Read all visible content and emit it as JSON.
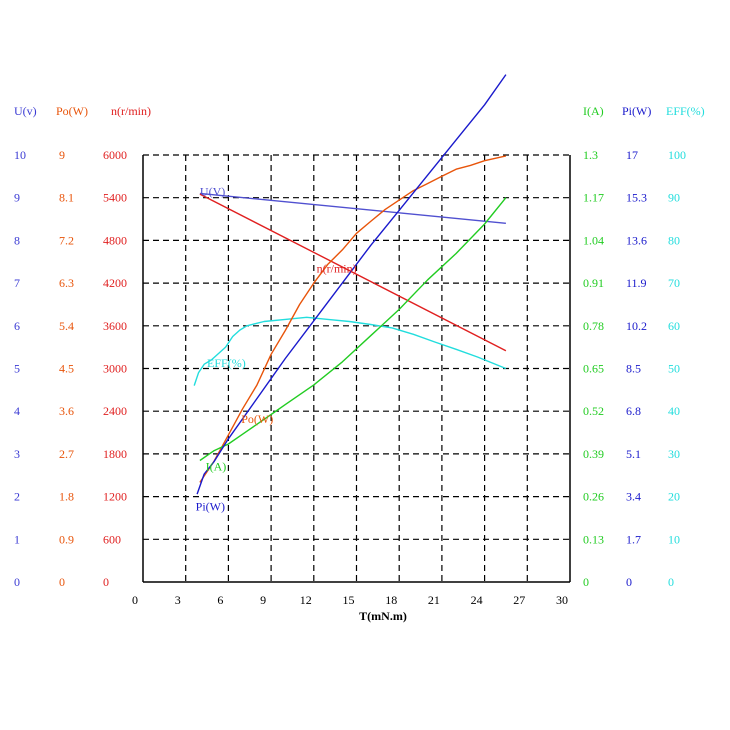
{
  "chart_data": {
    "type": "line",
    "xlabel": "T(mN.m)",
    "x_ticks": [
      "0",
      "3",
      "6",
      "9",
      "12",
      "15",
      "18",
      "21",
      "24",
      "27",
      "30"
    ],
    "xlim": [
      0,
      30
    ],
    "grid": true,
    "axes": [
      {
        "key": "U",
        "title": "U(v)",
        "side": "left",
        "color": "#3b3bd4",
        "ticks": [
          "0",
          "1",
          "2",
          "3",
          "4",
          "5",
          "6",
          "7",
          "8",
          "9",
          "10"
        ],
        "ylim": [
          0,
          10
        ]
      },
      {
        "key": "Po",
        "title": "Po(W)",
        "side": "left",
        "color": "#e8540a",
        "ticks": [
          "0",
          "0.9",
          "1.8",
          "2.7",
          "3.6",
          "4.5",
          "5.4",
          "6.3",
          "7.2",
          "8.1",
          "9"
        ],
        "ylim": [
          0,
          9
        ]
      },
      {
        "key": "n",
        "title": "n(r/min)",
        "side": "left",
        "color": "#e02020",
        "ticks": [
          "0",
          "600",
          "1200",
          "1800",
          "2400",
          "3000",
          "3600",
          "4200",
          "4800",
          "5400",
          "6000"
        ],
        "ylim": [
          0,
          6000
        ]
      },
      {
        "key": "I",
        "title": "I(A)",
        "side": "right",
        "color": "#22cc22",
        "ticks": [
          "0",
          "0.13",
          "0.26",
          "0.39",
          "0.52",
          "0.65",
          "0.78",
          "0.91",
          "1.04",
          "1.17",
          "1.3"
        ],
        "ylim": [
          0,
          1.3
        ]
      },
      {
        "key": "Pi",
        "title": "Pi(W)",
        "side": "right",
        "color": "#1a1acc",
        "ticks": [
          "0",
          "1.7",
          "3.4",
          "5.1",
          "6.8",
          "8.5",
          "10.2",
          "11.9",
          "13.6",
          "15.3",
          "17"
        ],
        "ylim": [
          0,
          17
        ]
      },
      {
        "key": "EFF",
        "title": "EFF(%)",
        "side": "right",
        "color": "#22dddd",
        "ticks": [
          "0",
          "10",
          "20",
          "30",
          "40",
          "50",
          "60",
          "70",
          "80",
          "90",
          "100"
        ],
        "ylim": [
          0,
          100
        ]
      }
    ],
    "series": [
      {
        "name": "U(V)",
        "axis": "U",
        "color": "#5050d0",
        "label_at": [
          4,
          9.05
        ],
        "x": [
          4,
          25.5
        ],
        "y": [
          9.1,
          8.4
        ]
      },
      {
        "name": "n(r/min)",
        "axis": "n",
        "color": "#e02020",
        "label_at": [
          12.2,
          4350
        ],
        "x": [
          4,
          25.5
        ],
        "y": [
          5450,
          3250
        ]
      },
      {
        "name": "EFF(%)",
        "axis": "EFF",
        "color": "#22dddd",
        "label_at": [
          4.5,
          50.3
        ],
        "x": [
          3.6,
          3.9,
          4.3,
          4.8,
          5.3,
          5.8,
          6.3,
          6.8,
          7.3,
          8.5,
          10,
          11.5,
          13,
          14.5,
          16,
          17.5,
          19,
          20.5,
          22,
          23.5,
          25.5
        ],
        "y": [
          46,
          49,
          51,
          52,
          53.5,
          55,
          57.5,
          59,
          60,
          61,
          61.5,
          62,
          61.5,
          61,
          60.3,
          59.5,
          58,
          56.2,
          54.5,
          52.7,
          50
        ]
      },
      {
        "name": "Po(W)",
        "axis": "Po",
        "color": "#e8540a",
        "label_at": [
          6.9,
          3.35
        ],
        "x": [
          4,
          5,
          6,
          7,
          8,
          9,
          10,
          11,
          12,
          13,
          14,
          15,
          16,
          17,
          18,
          19,
          20,
          21,
          22,
          23,
          24,
          25.5
        ],
        "y": [
          2.1,
          2.55,
          3.1,
          3.65,
          4.15,
          4.8,
          5.3,
          5.85,
          6.3,
          6.7,
          7.0,
          7.35,
          7.6,
          7.85,
          8.05,
          8.25,
          8.4,
          8.55,
          8.7,
          8.78,
          8.88,
          8.98
        ]
      },
      {
        "name": "I(A)",
        "axis": "I",
        "color": "#22cc22",
        "label_at": [
          4.4,
          0.34
        ],
        "x": [
          4,
          5,
          6,
          7,
          8,
          9,
          10,
          12,
          14,
          16,
          18,
          20,
          22,
          24,
          25.5
        ],
        "y": [
          0.37,
          0.4,
          0.42,
          0.45,
          0.48,
          0.51,
          0.54,
          0.6,
          0.67,
          0.75,
          0.83,
          0.92,
          1.0,
          1.09,
          1.17
        ]
      },
      {
        "name": "Pi(W)",
        "axis": "Pi",
        "color": "#1a1acc",
        "label_at": [
          3.7,
          2.85
        ],
        "x": [
          3.8,
          4.3,
          5,
          6,
          8,
          10,
          12,
          14,
          16,
          18,
          20,
          22,
          24,
          25.5
        ],
        "y": [
          3.5,
          4.3,
          4.8,
          5.7,
          7.3,
          8.9,
          10.4,
          11.9,
          13.4,
          14.8,
          16.2,
          17.6,
          19.0,
          20.2
        ]
      }
    ]
  }
}
